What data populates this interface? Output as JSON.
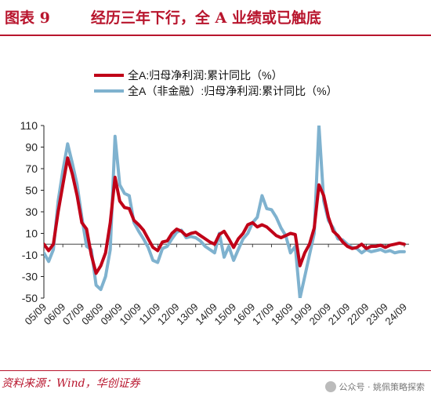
{
  "title": {
    "figure_number": "图表 9",
    "text": "经历三年下行，全 A 业绩或已触底"
  },
  "source": "资料来源：Wind，华创证券",
  "watermark": "公众号 · 姚佩策略探索",
  "colors": {
    "series1": "#c00018",
    "series2": "#7fb2cf",
    "title": "#b8152d",
    "axis": "#222222"
  },
  "chart_data": {
    "type": "line",
    "legend": {
      "position": "top-left"
    },
    "ylim": [
      -50,
      110
    ],
    "yticks": [
      -50,
      -30,
      -10,
      10,
      30,
      50,
      70,
      90,
      110
    ],
    "xlim": [
      0,
      77
    ],
    "xticks": [
      {
        "label": "05/09",
        "x": 0
      },
      {
        "label": "06/09",
        "x": 4
      },
      {
        "label": "07/09",
        "x": 8
      },
      {
        "label": "08/09",
        "x": 12
      },
      {
        "label": "09/09",
        "x": 16
      },
      {
        "label": "10/09",
        "x": 20
      },
      {
        "label": "11/09",
        "x": 24
      },
      {
        "label": "12/09",
        "x": 28
      },
      {
        "label": "13/09",
        "x": 32
      },
      {
        "label": "14/09",
        "x": 36
      },
      {
        "label": "15/09",
        "x": 40
      },
      {
        "label": "16/09",
        "x": 44
      },
      {
        "label": "17/09",
        "x": 48
      },
      {
        "label": "18/09",
        "x": 52
      },
      {
        "label": "19/09",
        "x": 56
      },
      {
        "label": "20/09",
        "x": 60
      },
      {
        "label": "21/09",
        "x": 64
      },
      {
        "label": "22/09",
        "x": 68
      },
      {
        "label": "23/09",
        "x": 72
      },
      {
        "label": "24/09",
        "x": 76
      }
    ],
    "series": [
      {
        "name": "全A:归母净利润:累计同比（%）",
        "points": [
          [
            0,
            0
          ],
          [
            1,
            -6
          ],
          [
            2,
            0
          ],
          [
            3,
            30
          ],
          [
            4,
            55
          ],
          [
            5,
            80
          ],
          [
            6,
            65
          ],
          [
            7,
            45
          ],
          [
            8,
            20
          ],
          [
            9,
            14
          ],
          [
            10,
            -10
          ],
          [
            11,
            -27
          ],
          [
            12,
            -20
          ],
          [
            13,
            -8
          ],
          [
            14,
            20
          ],
          [
            15,
            62
          ],
          [
            16,
            40
          ],
          [
            17,
            34
          ],
          [
            18,
            33
          ],
          [
            19,
            22
          ],
          [
            20,
            18
          ],
          [
            21,
            13
          ],
          [
            22,
            5
          ],
          [
            23,
            -3
          ],
          [
            24,
            -6
          ],
          [
            25,
            2
          ],
          [
            26,
            3
          ],
          [
            27,
            10
          ],
          [
            28,
            14
          ],
          [
            29,
            12
          ],
          [
            30,
            8
          ],
          [
            31,
            10
          ],
          [
            32,
            11
          ],
          [
            33,
            8
          ],
          [
            34,
            5
          ],
          [
            35,
            2
          ],
          [
            36,
            0
          ],
          [
            37,
            9
          ],
          [
            38,
            12
          ],
          [
            39,
            5
          ],
          [
            40,
            -3
          ],
          [
            41,
            5
          ],
          [
            42,
            10
          ],
          [
            43,
            18
          ],
          [
            44,
            20
          ],
          [
            45,
            16
          ],
          [
            46,
            18
          ],
          [
            47,
            16
          ],
          [
            48,
            12
          ],
          [
            49,
            8
          ],
          [
            50,
            6
          ],
          [
            51,
            8
          ],
          [
            52,
            10
          ],
          [
            53,
            9
          ],
          [
            54,
            -20
          ],
          [
            55,
            -8
          ],
          [
            56,
            0
          ],
          [
            57,
            15
          ],
          [
            58,
            55
          ],
          [
            59,
            45
          ],
          [
            60,
            25
          ],
          [
            61,
            12
          ],
          [
            62,
            8
          ],
          [
            63,
            2
          ],
          [
            64,
            -2
          ],
          [
            65,
            -4
          ],
          [
            66,
            -3
          ],
          [
            67,
            0
          ],
          [
            68,
            -4
          ],
          [
            69,
            -2
          ],
          [
            70,
            -2
          ],
          [
            71,
            -1
          ],
          [
            72,
            -3
          ],
          [
            73,
            -1
          ],
          [
            74,
            0
          ],
          [
            75,
            1
          ],
          [
            76,
            0
          ]
        ]
      },
      {
        "name": "全A（非金融）:归母净利润:累计同比（%）",
        "points": [
          [
            0,
            -8
          ],
          [
            1,
            -16
          ],
          [
            2,
            -5
          ],
          [
            3,
            40
          ],
          [
            4,
            68
          ],
          [
            5,
            93
          ],
          [
            6,
            75
          ],
          [
            7,
            55
          ],
          [
            8,
            25
          ],
          [
            9,
            -2
          ],
          [
            10,
            -5
          ],
          [
            11,
            -38
          ],
          [
            12,
            -42
          ],
          [
            13,
            -30
          ],
          [
            14,
            -5
          ],
          [
            15,
            100
          ],
          [
            16,
            55
          ],
          [
            17,
            47
          ],
          [
            18,
            45
          ],
          [
            19,
            20
          ],
          [
            20,
            12
          ],
          [
            21,
            5
          ],
          [
            22,
            -3
          ],
          [
            23,
            -15
          ],
          [
            24,
            -17
          ],
          [
            25,
            -4
          ],
          [
            26,
            -2
          ],
          [
            27,
            5
          ],
          [
            28,
            11
          ],
          [
            29,
            13
          ],
          [
            30,
            6
          ],
          [
            31,
            7
          ],
          [
            32,
            6
          ],
          [
            33,
            3
          ],
          [
            34,
            -2
          ],
          [
            35,
            -5
          ],
          [
            36,
            -8
          ],
          [
            37,
            10
          ],
          [
            38,
            -12
          ],
          [
            39,
            -2
          ],
          [
            40,
            -15
          ],
          [
            41,
            -5
          ],
          [
            42,
            5
          ],
          [
            43,
            10
          ],
          [
            44,
            20
          ],
          [
            45,
            25
          ],
          [
            46,
            45
          ],
          [
            47,
            33
          ],
          [
            48,
            32
          ],
          [
            49,
            25
          ],
          [
            50,
            15
          ],
          [
            51,
            8
          ],
          [
            52,
            -8
          ],
          [
            53,
            -2
          ],
          [
            54,
            -50
          ],
          [
            55,
            -30
          ],
          [
            56,
            -10
          ],
          [
            57,
            10
          ],
          [
            58,
            110
          ],
          [
            59,
            40
          ],
          [
            60,
            22
          ],
          [
            61,
            15
          ],
          [
            62,
            5
          ],
          [
            63,
            4
          ],
          [
            64,
            0
          ],
          [
            65,
            -3
          ],
          [
            66,
            -4
          ],
          [
            67,
            -8
          ],
          [
            68,
            -5
          ],
          [
            69,
            -7
          ],
          [
            70,
            -6
          ],
          [
            71,
            -5
          ],
          [
            72,
            -7
          ],
          [
            73,
            -6
          ],
          [
            74,
            -8
          ],
          [
            75,
            -7
          ],
          [
            76,
            -7
          ]
        ]
      }
    ]
  }
}
